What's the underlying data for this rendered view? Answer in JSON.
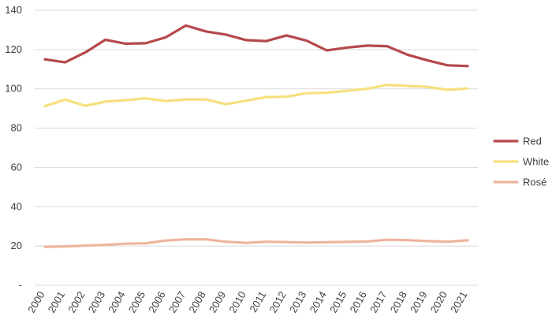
{
  "chart_data": {
    "type": "line",
    "title": "",
    "xlabel": "",
    "ylabel": "",
    "ylim": [
      0,
      140
    ],
    "y_ticks": [
      {
        "value": 0,
        "label": "-"
      },
      {
        "value": 20,
        "label": "20"
      },
      {
        "value": 40,
        "label": "40"
      },
      {
        "value": 60,
        "label": "60"
      },
      {
        "value": 80,
        "label": "80"
      },
      {
        "value": 100,
        "label": "100"
      },
      {
        "value": 120,
        "label": "120"
      },
      {
        "value": 140,
        "label": "140"
      }
    ],
    "categories": [
      "2000",
      "2001",
      "2002",
      "2003",
      "2004",
      "2005",
      "2006",
      "2007",
      "2008",
      "2009",
      "2010",
      "2011",
      "2012",
      "2013",
      "2014",
      "2015",
      "2016",
      "2017",
      "2018",
      "2019",
      "2020",
      "2021"
    ],
    "grid": "horizontal",
    "legend_position": "right",
    "series": [
      {
        "name": "Red",
        "color": "#b5484b",
        "values": [
          115,
          113.5,
          118.5,
          125,
          123,
          123.2,
          126.2,
          132.2,
          129.2,
          127.6,
          124.8,
          124.3,
          127.2,
          124.5,
          119.6,
          121,
          122,
          121.7,
          117.4,
          114.5,
          112,
          111.6
        ]
      },
      {
        "name": "White",
        "color": "#f6e07d",
        "values": [
          91.2,
          94.5,
          91.4,
          93.5,
          94.2,
          95.2,
          93.8,
          94.6,
          94.6,
          92.2,
          94,
          95.8,
          96,
          97.8,
          98,
          99,
          100,
          102,
          101.5,
          101,
          99.5,
          100.2
        ]
      },
      {
        "name": "Rosé",
        "color": "#efb49c",
        "values": [
          19.6,
          19.8,
          20.2,
          20.6,
          21.2,
          21.4,
          22.8,
          23.4,
          23.4,
          22.2,
          21.6,
          22.2,
          22,
          21.8,
          21.9,
          22.1,
          22.3,
          23.2,
          23,
          22.5,
          22.2,
          22.9
        ]
      }
    ]
  }
}
